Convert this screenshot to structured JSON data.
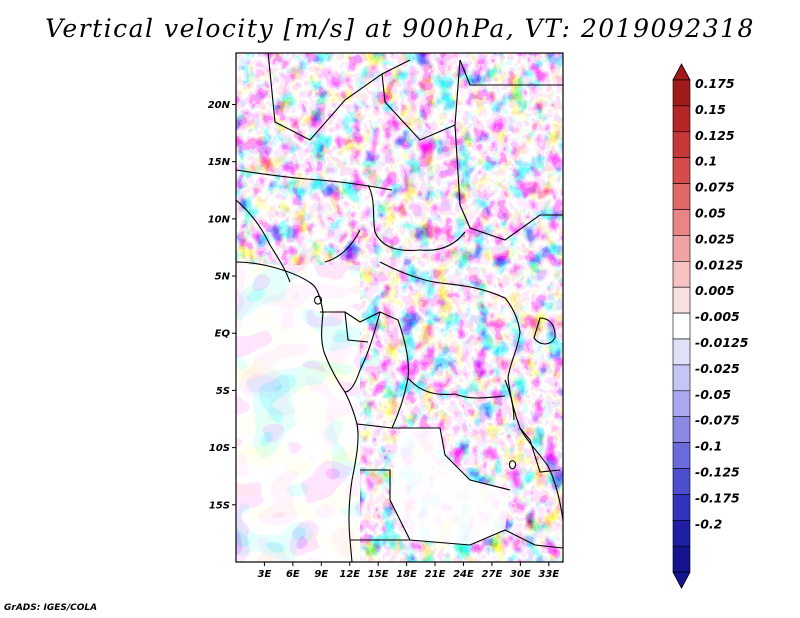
{
  "title": "Vertical velocity [m/s] at 900hPa, VT: 2019092318",
  "credit": "GrADS: IGES/COLA",
  "map": {
    "lon_range": [
      0,
      34.5
    ],
    "lat_range": [
      -20,
      24.5
    ],
    "lat_ticks": [
      {
        "lat": 20,
        "label": "20N"
      },
      {
        "lat": 15,
        "label": "15N"
      },
      {
        "lat": 10,
        "label": "10N"
      },
      {
        "lat": 5,
        "label": "5N"
      },
      {
        "lat": 0,
        "label": "EQ"
      },
      {
        "lat": -5,
        "label": "5S"
      },
      {
        "lat": -10,
        "label": "10S"
      },
      {
        "lat": -15,
        "label": "15S"
      }
    ],
    "lon_ticks": [
      {
        "lon": 3,
        "label": "3E"
      },
      {
        "lon": 6,
        "label": "6E"
      },
      {
        "lon": 9,
        "label": "9E"
      },
      {
        "lon": 12,
        "label": "12E"
      },
      {
        "lon": 15,
        "label": "15E"
      },
      {
        "lon": 18,
        "label": "18E"
      },
      {
        "lon": 21,
        "label": "21E"
      },
      {
        "lon": 24,
        "label": "24E"
      },
      {
        "lon": 27,
        "label": "27E"
      },
      {
        "lon": 30,
        "label": "30E"
      },
      {
        "lon": 33,
        "label": "33E"
      }
    ]
  },
  "colorbar": {
    "labels": [
      "0.175",
      "0.15",
      "0.125",
      "0.1",
      "0.075",
      "0.05",
      "0.025",
      "0.0125",
      "0.005",
      "-0.005",
      "-0.0125",
      "-0.025",
      "-0.05",
      "-0.075",
      "-0.1",
      "-0.125",
      "-0.175",
      "-0.2"
    ],
    "colors": [
      "#a31a1a",
      "#b72626",
      "#c93838",
      "#d64c4c",
      "#e06868",
      "#e98585",
      "#f0a3a3",
      "#f6c2c2",
      "#fbe0e0",
      "#ffffff",
      "#e0e0fb",
      "#c6c6f6",
      "#a9a9ef",
      "#8a8ae6",
      "#6b6bdc",
      "#4d4dcf",
      "#3232bd",
      "#1e1ea6",
      "#14148f"
    ],
    "max_color": "#a31a1a",
    "min_color": "#14148f"
  }
}
